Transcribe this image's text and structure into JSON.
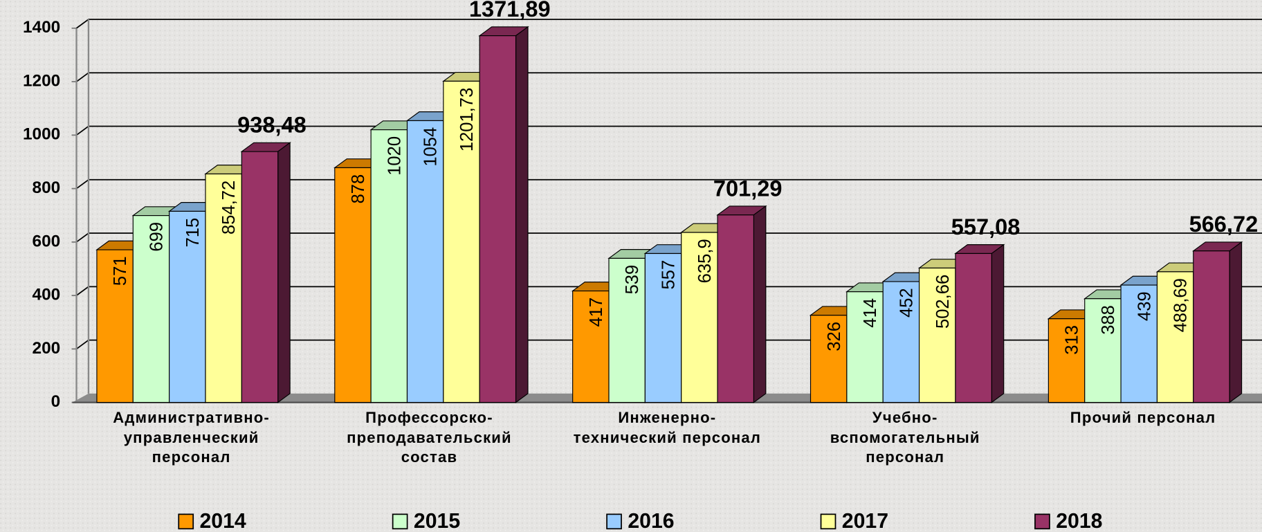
{
  "chart_data": {
    "type": "bar",
    "categories": [
      "Административно-\nуправленческий\nперсонал",
      "Профессорско-\nпреподавательский\nсостав",
      "Инженерно-\nтехнический персонал",
      "Учебно-\nвспомогательный\nперсонал",
      "Прочий персонал"
    ],
    "series": [
      {
        "name": "2014",
        "color": "#ff9900",
        "values": [
          571,
          878,
          417,
          326,
          313
        ]
      },
      {
        "name": "2015",
        "color": "#ccffcc",
        "values": [
          699,
          1020,
          539,
          414,
          388
        ]
      },
      {
        "name": "2016",
        "color": "#99ccff",
        "values": [
          715,
          1054,
          557,
          452,
          439
        ]
      },
      {
        "name": "2017",
        "color": "#ffff99",
        "values": [
          854.72,
          1201.73,
          635.9,
          502.66,
          488.69
        ],
        "value_labels": [
          "854,72",
          "1201,73",
          "635,9",
          "502,66",
          "488,69"
        ]
      },
      {
        "name": "2018",
        "color": "#993366",
        "values": [
          938.48,
          1371.89,
          701.29,
          557.08,
          566.72
        ],
        "value_labels": [
          "938,48",
          "1371,89",
          "701,29",
          "557,08",
          "566,72"
        ]
      }
    ],
    "ylim": [
      0,
      1400
    ],
    "yticks": [
      0,
      200,
      400,
      600,
      800,
      1000,
      1200,
      1400
    ],
    "grid": true,
    "legend": "bottom"
  }
}
